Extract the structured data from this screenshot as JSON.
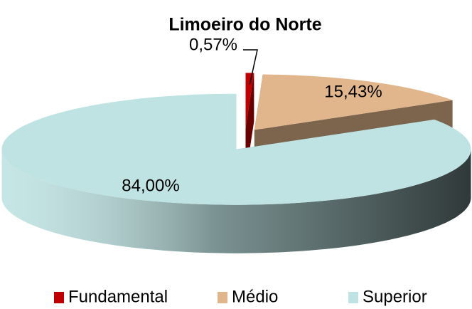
{
  "chart_data": {
    "type": "pie3d",
    "title": "Limoeiro do Norte",
    "categories": [
      "Fundamental",
      "Médio",
      "Superior"
    ],
    "values": [
      0.57,
      15.43,
      84.0
    ],
    "value_labels": [
      "0,57%",
      "15,43%",
      "84,00%"
    ],
    "colors": [
      "#c00000",
      "#e2b68c",
      "#bfe3e3"
    ],
    "legend": "bottom"
  }
}
